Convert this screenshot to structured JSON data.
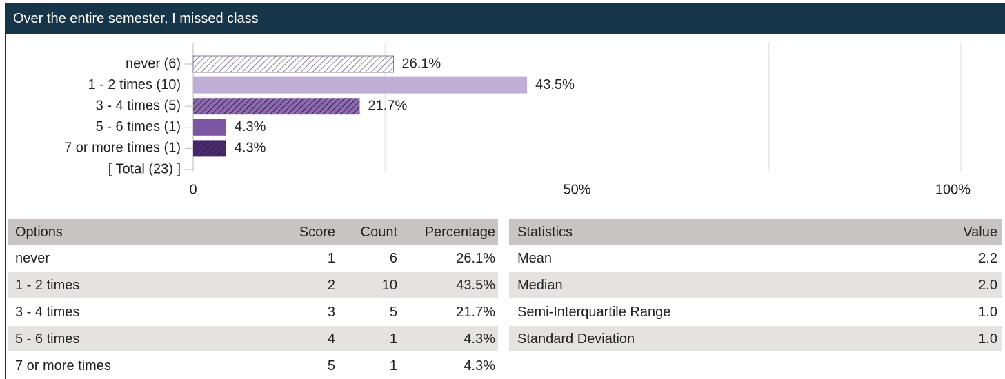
{
  "chart_data": {
    "type": "bar",
    "orientation": "horizontal",
    "title": "Over the entire semester, I missed class",
    "categories": [
      "never (6)",
      "1 - 2 times (10)",
      "3 - 4 times (5)",
      "5 - 6 times (1)",
      "7 or more times (1)",
      "[ Total (23) ]"
    ],
    "values": [
      26.1,
      43.5,
      21.7,
      4.3,
      4.3,
      null
    ],
    "value_labels": [
      "26.1%",
      "43.5%",
      "21.7%",
      "4.3%",
      "4.3%",
      null
    ],
    "colors": [
      "#cdbfdd",
      "#bfaed5",
      "#8e6aaf",
      "#7c55a3",
      "#4b2a72",
      null
    ],
    "hatched": [
      true,
      false,
      true,
      false,
      true,
      false
    ],
    "xlim": [
      0,
      100
    ],
    "xticks": [
      0,
      {
        "value": 50,
        "label": "50%"
      },
      {
        "value": 100,
        "label": "100%"
      }
    ],
    "minor_grid": [
      25,
      75
    ],
    "grid": true
  },
  "options_table": {
    "header": [
      "Options",
      "Score",
      "Count",
      "Percentage"
    ],
    "rows": [
      [
        "never",
        "1",
        "6",
        "26.1%"
      ],
      [
        "1 - 2 times",
        "2",
        "10",
        "43.5%"
      ],
      [
        "3 - 4 times",
        "3",
        "5",
        "21.7%"
      ],
      [
        "5 - 6 times",
        "4",
        "1",
        "4.3%"
      ],
      [
        "7 or more times",
        "5",
        "1",
        "4.3%"
      ]
    ]
  },
  "statistics_table": {
    "header": [
      "Statistics",
      "Value"
    ],
    "rows": [
      [
        "Mean",
        "2.2"
      ],
      [
        "Median",
        "2.0"
      ],
      [
        "Semi-Interquartile Range",
        "1.0"
      ],
      [
        "Standard Deviation",
        "1.0"
      ]
    ]
  }
}
